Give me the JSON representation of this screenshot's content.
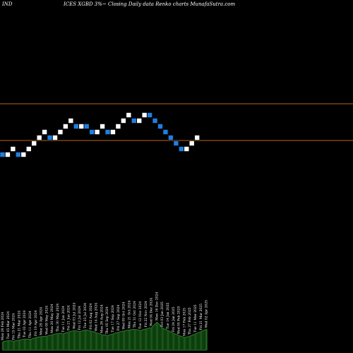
{
  "header": {
    "left": "IND",
    "center": "ICES XGBD 3%~  Closing Daily data  Renko  charts MunafaSutra.com"
  },
  "colors": {
    "background": "#000000",
    "up_brick": "#ffffff",
    "down_brick": "#1e7fe0",
    "reference_line": "#b8661e",
    "volume_fill": "#0d3d0d",
    "volume_stroke": "#3b8a3b"
  },
  "chart_data": {
    "type": "renko",
    "title": "",
    "reference_lines": [
      3.18,
      3.05
    ],
    "bricks": [
      {
        "d": "down",
        "v": 3.0
      },
      {
        "d": "up",
        "v": 3.0
      },
      {
        "d": "up",
        "v": 3.02
      },
      {
        "d": "down",
        "v": 3.0
      },
      {
        "d": "up",
        "v": 3.0
      },
      {
        "d": "up",
        "v": 3.02
      },
      {
        "d": "up",
        "v": 3.04
      },
      {
        "d": "up",
        "v": 3.06
      },
      {
        "d": "up",
        "v": 3.08
      },
      {
        "d": "down",
        "v": 3.06
      },
      {
        "d": "up",
        "v": 3.06
      },
      {
        "d": "up",
        "v": 3.08
      },
      {
        "d": "up",
        "v": 3.1
      },
      {
        "d": "up",
        "v": 3.12
      },
      {
        "d": "down",
        "v": 3.1
      },
      {
        "d": "up",
        "v": 3.1
      },
      {
        "d": "down",
        "v": 3.1
      },
      {
        "d": "down",
        "v": 3.08
      },
      {
        "d": "up",
        "v": 3.08
      },
      {
        "d": "up",
        "v": 3.1
      },
      {
        "d": "down",
        "v": 3.08
      },
      {
        "d": "up",
        "v": 3.08
      },
      {
        "d": "up",
        "v": 3.1
      },
      {
        "d": "up",
        "v": 3.12
      },
      {
        "d": "up",
        "v": 3.14
      },
      {
        "d": "down",
        "v": 3.12
      },
      {
        "d": "up",
        "v": 3.12
      },
      {
        "d": "up",
        "v": 3.14
      },
      {
        "d": "down",
        "v": 3.14
      },
      {
        "d": "down",
        "v": 3.12
      },
      {
        "d": "down",
        "v": 3.1
      },
      {
        "d": "down",
        "v": 3.08
      },
      {
        "d": "down",
        "v": 3.06
      },
      {
        "d": "down",
        "v": 3.04
      },
      {
        "d": "down",
        "v": 3.02
      },
      {
        "d": "up",
        "v": 3.02
      },
      {
        "d": "up",
        "v": 3.04
      },
      {
        "d": "up",
        "v": 3.06
      }
    ],
    "volume_labels": [
      "Mon 26 Feb 2024",
      "Tue 05 Mar 2024",
      "Fri 15 Mar 2024",
      "Thu 21 Mar 2024",
      "Tue 02 Apr 2024",
      "Thu 11 Apr 2024",
      "Fri 19 Apr 2024",
      "Mon 29 Apr 2024",
      "Wed 08 May 2024",
      "Mon 20 May 2024",
      "Thu 30 May 2024",
      "Tue 11 Jun 2024",
      "Fri 21 Jun 2024",
      "Wed 03 Jul 2024",
      "Fri 12 Jul 2024",
      "Tue 23 Jul 2024",
      "Fri 02 Aug 2024",
      "Wed 14 Aug 2024",
      "Mon 26 Aug 2024",
      "Thu 05 Sep 2024",
      "Tue 17 Sep 2024",
      "Fri 27 Sep 2024",
      "Wed 09 Oct 2024",
      "Mon 21 Oct 2024",
      "Thu 31 Oct 2024",
      "Tue 12 Nov 2024",
      "Fri 22 Nov 2024",
      "Wed 04 Dec 2024",
      "Mon 16 Dec 2024",
      "Fri 03 Jan 2025",
      "Tue 14 Jan 2025",
      "Fri 24 Jan 2025",
      "Wed 05 Feb 2025",
      "Mon 17 Feb 2025",
      "Thu 27 Feb 2025",
      "Tue 11 Mar 2025",
      "Fri 21 Mar 2025",
      "Wed 02 Apr 2025"
    ],
    "volume_values": [
      0.3,
      0.34,
      0.32,
      0.36,
      0.4,
      0.38,
      0.45,
      0.48,
      0.5,
      0.55,
      0.6,
      0.58,
      0.65,
      0.7,
      0.66,
      0.72,
      0.68,
      0.62,
      0.55,
      0.52,
      0.58,
      0.64,
      0.68,
      0.72,
      0.74,
      0.7,
      0.76,
      0.8,
      1.0,
      0.78,
      0.7,
      0.6,
      0.52,
      0.45,
      0.5,
      0.58,
      0.66,
      0.74
    ]
  }
}
